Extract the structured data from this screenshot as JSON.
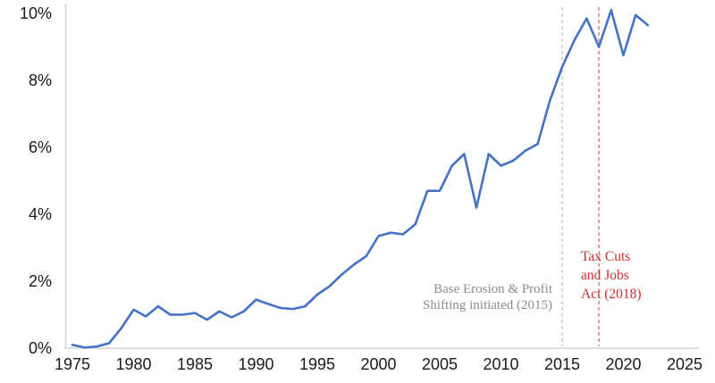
{
  "chart_data": {
    "type": "line",
    "title": "",
    "xlabel": "",
    "ylabel": "",
    "x": [
      1975,
      1976,
      1977,
      1978,
      1979,
      1980,
      1981,
      1982,
      1983,
      1984,
      1985,
      1986,
      1987,
      1988,
      1989,
      1990,
      1991,
      1992,
      1993,
      1994,
      1995,
      1996,
      1997,
      1998,
      1999,
      2000,
      2001,
      2002,
      2003,
      2004,
      2005,
      2006,
      2007,
      2008,
      2009,
      2010,
      2011,
      2012,
      2013,
      2014,
      2015,
      2016,
      2017,
      2018,
      2019,
      2020,
      2021,
      2022
    ],
    "values": [
      0.1,
      0.02,
      0.05,
      0.15,
      0.6,
      1.15,
      0.95,
      1.25,
      1.0,
      1.0,
      1.05,
      0.85,
      1.1,
      0.92,
      1.1,
      1.45,
      1.32,
      1.2,
      1.17,
      1.25,
      1.6,
      1.85,
      2.2,
      2.5,
      2.75,
      3.35,
      3.45,
      3.4,
      3.7,
      4.7,
      4.7,
      5.45,
      5.8,
      4.2,
      5.8,
      5.45,
      5.6,
      5.9,
      6.1,
      7.4,
      8.4,
      9.2,
      9.85,
      9.0,
      10.1,
      8.75,
      9.95,
      9.65
    ],
    "xlim": [
      1975,
      2025
    ],
    "ylim": [
      0,
      10
    ],
    "x_tick_values": [
      1975,
      1980,
      1985,
      1990,
      1995,
      2000,
      2005,
      2010,
      2015,
      2020,
      2025
    ],
    "x_tick_labels": [
      "1975",
      "1980",
      "1985",
      "1990",
      "1995",
      "2000",
      "2005",
      "2010",
      "2015",
      "2020",
      "2025"
    ],
    "y_tick_values": [
      0,
      2,
      4,
      6,
      8,
      10
    ],
    "y_tick_labels": [
      "0%",
      "2%",
      "4%",
      "6%",
      "8%",
      "10%"
    ],
    "grid": "off",
    "legend": "none",
    "line_color": "#4472C4",
    "axis_color": "#D9D9D9",
    "annotations": [
      {
        "id": "beps",
        "year": 2015,
        "line_style": "dashed",
        "line_color": "#BFBFBF",
        "text_color": "#8C8C8C",
        "lines": [
          "Base Erosion & Profit",
          "Shifting initiated (2015)"
        ]
      },
      {
        "id": "tcja",
        "year": 2018,
        "line_style": "dashed",
        "line_color": "#CC6A62",
        "text_color": "#C8332E",
        "lines": [
          "Tax Cuts",
          "and Jobs",
          "Act (2018)"
        ]
      }
    ]
  }
}
